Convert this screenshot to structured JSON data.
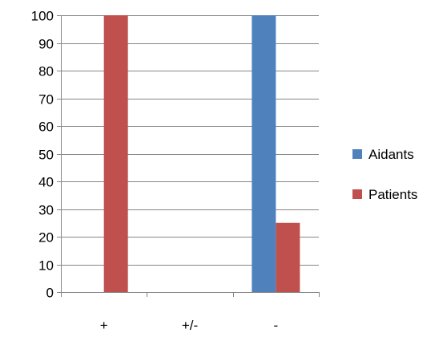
{
  "chart_data": {
    "type": "bar",
    "title": "",
    "xlabel": "",
    "ylabel": "",
    "categories": [
      "+",
      "+/-",
      "-"
    ],
    "series": [
      {
        "name": "Aidants",
        "values": [
          0,
          0,
          100
        ],
        "color": "#4f81bd"
      },
      {
        "name": "Patients",
        "values": [
          100,
          0,
          25
        ],
        "color": "#c0504d"
      }
    ],
    "ylim": [
      0,
      100
    ],
    "yticks": [
      0,
      10,
      20,
      30,
      40,
      50,
      60,
      70,
      80,
      90,
      100
    ],
    "grid": true,
    "legend_position": "right"
  },
  "colors": {
    "gridline": "#868686",
    "axis": "#868686"
  }
}
